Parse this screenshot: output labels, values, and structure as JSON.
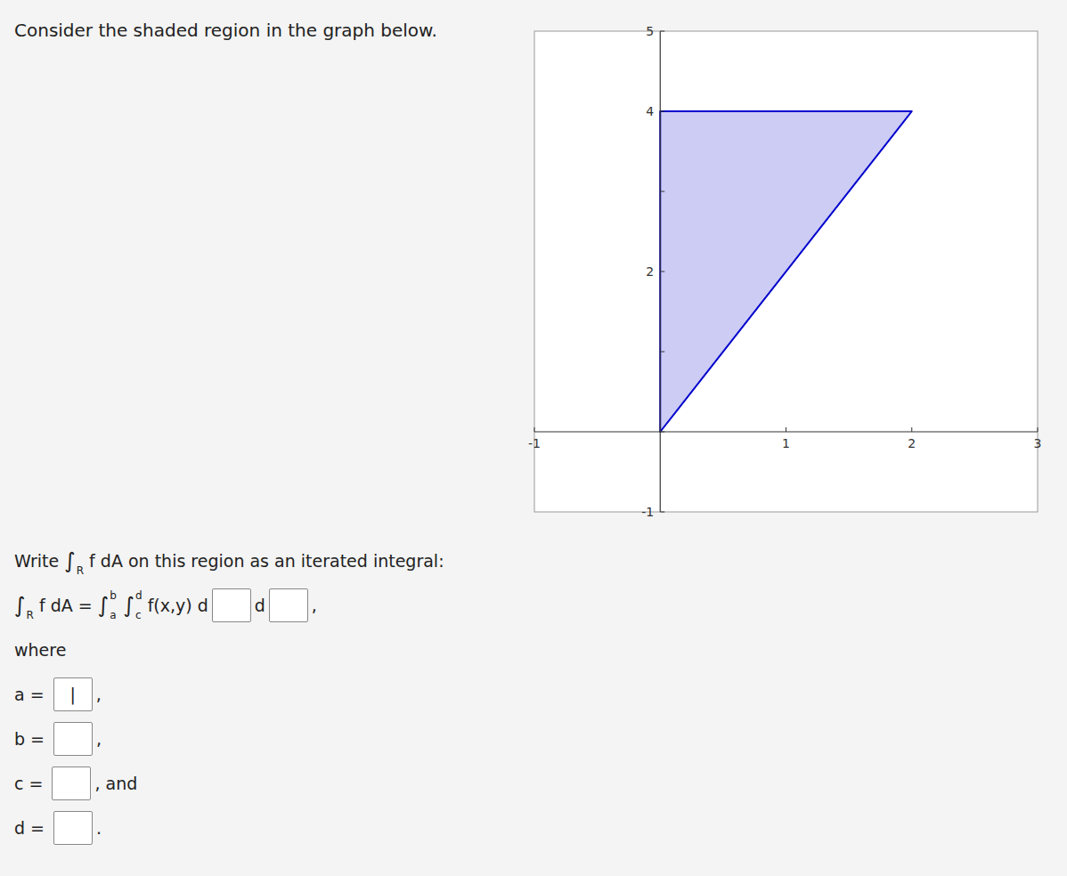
{
  "chart_data": {
    "type": "polygon",
    "title": "Consider the shaded region in the graph below.",
    "x": [
      0,
      0,
      2
    ],
    "y": [
      0,
      4,
      4
    ],
    "color": "#0000cc",
    "xlim": [
      -1,
      3
    ],
    "ylim": [
      -1,
      5
    ],
    "xticks": [
      -1,
      {
        "value": 0,
        "label": null
      },
      1,
      2,
      3
    ],
    "yticks": [
      -1,
      {
        "value": 0,
        "label": null
      },
      {
        "value": 1,
        "label": null
      },
      2,
      {
        "value": 3,
        "label": null
      },
      4,
      5
    ],
    "annotations": [
      [
        "Write ",
        {
          "base": "∫",
          "sub": "R"
        },
        " f dA on this region as an iterated integral:"
      ],
      [
        {
          "base": "∫",
          "sub": "R"
        },
        " f dA = ",
        {
          "base": "∫",
          "sub": "a",
          "sup": "b"
        },
        {
          "base": " ∫",
          "sub": "c",
          "sup": "d"
        },
        " f(x,y) d",
        {
          "box": true
        },
        "d",
        {
          "box": true
        },
        ","
      ],
      [
        "where"
      ],
      [
        "a = ",
        {
          "box": true,
          "cursor": "|"
        },
        ","
      ],
      [
        "b = ",
        {
          "box": true
        },
        ","
      ],
      [
        "c = ",
        {
          "box": true
        },
        ", and"
      ],
      [
        "d = ",
        {
          "box": true
        },
        "."
      ]
    ]
  }
}
